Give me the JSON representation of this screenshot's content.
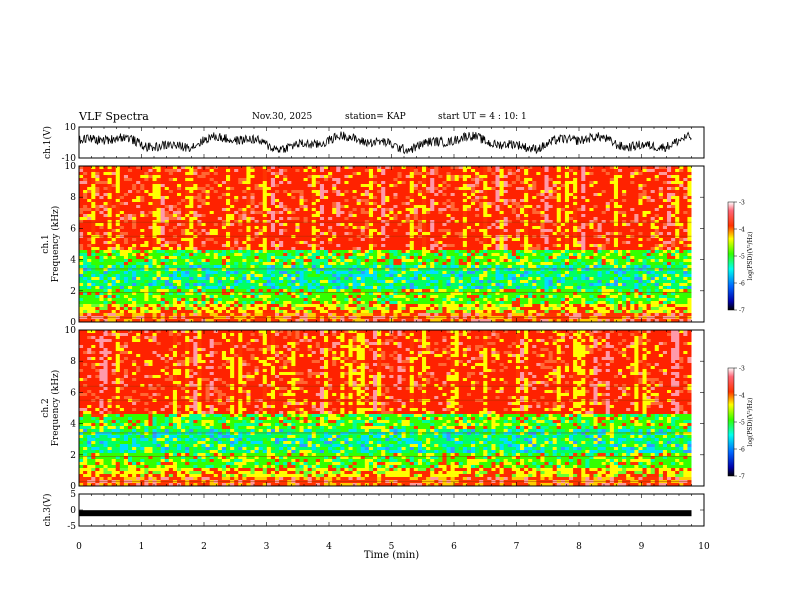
{
  "header": {
    "title": "VLF Spectra",
    "date": "Nov.30, 2025",
    "station": "station= KAP",
    "start": "start UT =  4 : 10: 1"
  },
  "chart_data": {
    "type": "heatmap",
    "title": "VLF Spectra",
    "xlabel": "Time (min)",
    "xlim": [
      0,
      10
    ],
    "x_ticks": [
      "0",
      "1",
      "2",
      "3",
      "4",
      "5",
      "6",
      "7",
      "8",
      "9",
      "10"
    ],
    "panels": [
      {
        "name": "ch1-waveform",
        "type": "line",
        "ylabel": "ch.1(V)",
        "ylim": [
          -10,
          10
        ],
        "y_ticks": [
          "10",
          "-10"
        ]
      },
      {
        "name": "ch1-spectrogram",
        "type": "heatmap",
        "ylabel": "ch.1 Frequency (kHz)",
        "ylim": [
          0,
          10
        ],
        "y_ticks": [
          "0",
          "2",
          "4",
          "6",
          "8",
          "10"
        ],
        "colorbar": {
          "label": "log(PSD)(V²/Hz)",
          "range": [
            -7,
            -3
          ],
          "ticks": [
            "-3",
            "-4",
            "-5",
            "-6",
            "-7"
          ]
        }
      },
      {
        "name": "ch2-spectrogram",
        "type": "heatmap",
        "ylabel": "ch.2 Frequency (kHz)",
        "ylim": [
          0,
          10
        ],
        "y_ticks": [
          "0",
          "2",
          "4",
          "6",
          "8",
          "10"
        ],
        "colorbar": {
          "label": "log(PSD)(V²/Hz)",
          "range": [
            -7,
            -3
          ],
          "ticks": [
            "-3",
            "-4",
            "-5",
            "-6",
            "-7"
          ]
        }
      },
      {
        "name": "ch3-waveform",
        "type": "line",
        "ylabel": "ch.3(V)",
        "ylim": [
          -5,
          5
        ],
        "y_ticks": [
          "5",
          "0",
          "-5"
        ],
        "level": -1
      }
    ],
    "data_end_min": 9.8
  }
}
